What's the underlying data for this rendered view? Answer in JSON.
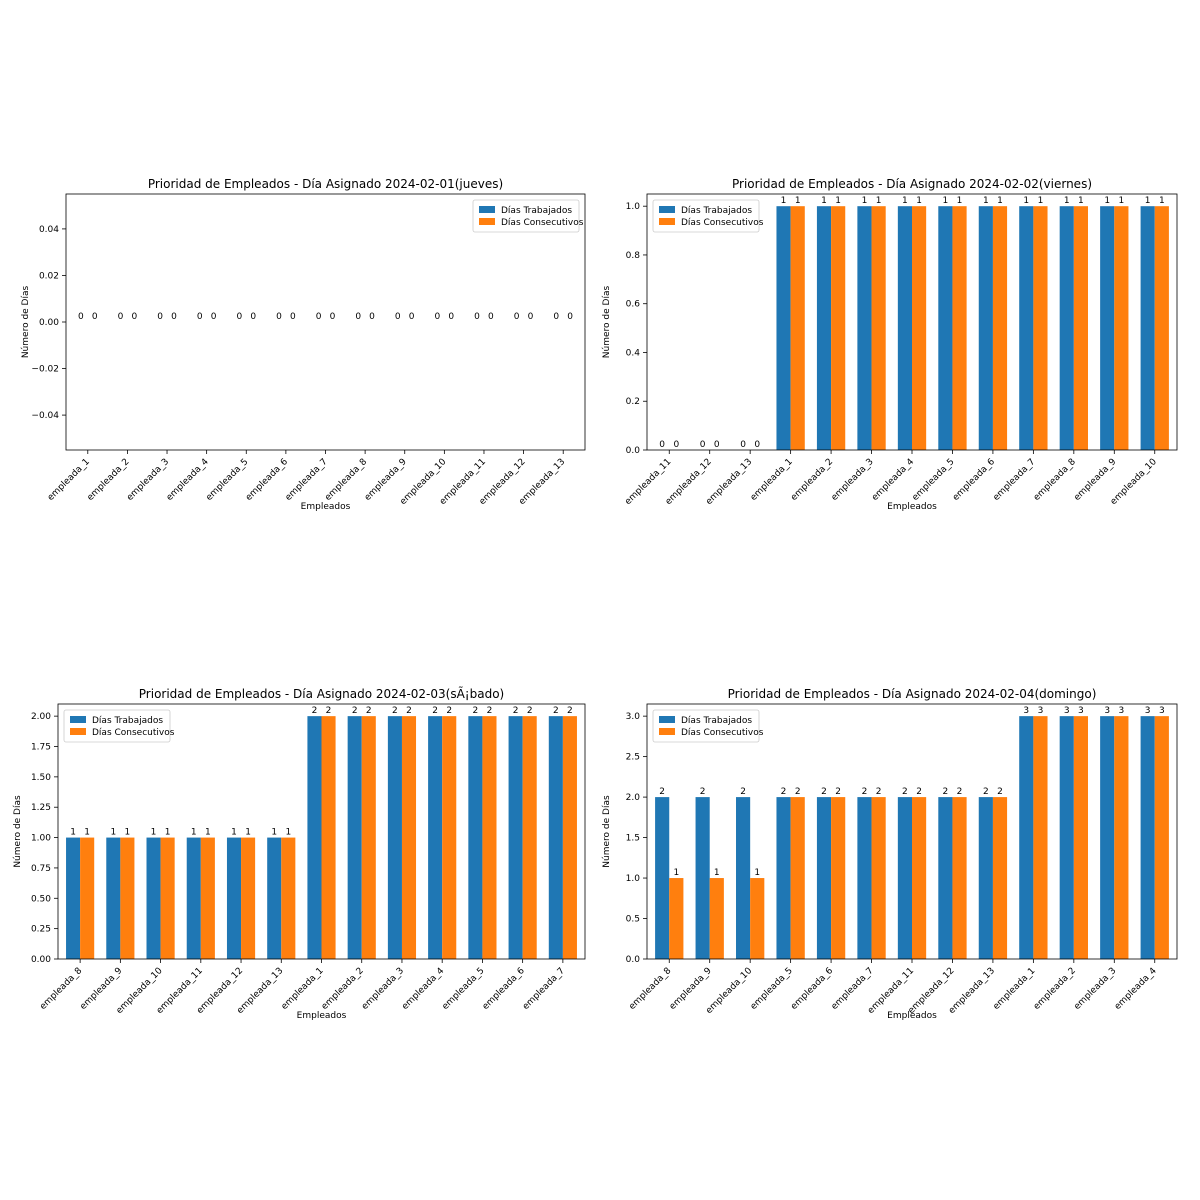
{
  "legend_labels": [
    "Días Trabajados",
    "Días Consecutivos"
  ],
  "colors": {
    "series_1": "#1f77b4",
    "series_2": "#ff7f0e",
    "axes": "#000000"
  },
  "chart_data": [
    {
      "type": "bar",
      "title": "Prioridad de Empleados - Día Asignado 2024-02-01(jueves)",
      "xlabel": "Empleados",
      "ylabel": "Número de Días",
      "ylim": [
        -0.055,
        0.055
      ],
      "yticks": [
        -0.04,
        -0.02,
        0.0,
        0.02,
        0.04
      ],
      "ytick_labels": [
        "−0.04",
        "−0.02",
        "0.00",
        "0.02",
        "0.04"
      ],
      "legend_position": "upper right",
      "grid": false,
      "categories": [
        "empleada_1",
        "empleada_2",
        "empleada_3",
        "empleada_4",
        "empleada_5",
        "empleada_6",
        "empleada_7",
        "empleada_8",
        "empleada_9",
        "empleada_10",
        "empleada_11",
        "empleada_12",
        "empleada_13"
      ],
      "series": [
        {
          "name": "Días Trabajados",
          "values": [
            0,
            0,
            0,
            0,
            0,
            0,
            0,
            0,
            0,
            0,
            0,
            0,
            0
          ]
        },
        {
          "name": "Días Consecutivos",
          "values": [
            0,
            0,
            0,
            0,
            0,
            0,
            0,
            0,
            0,
            0,
            0,
            0,
            0
          ]
        }
      ]
    },
    {
      "type": "bar",
      "title": "Prioridad de Empleados - Día Asignado 2024-02-02(viernes)",
      "xlabel": "Empleados",
      "ylabel": "Número de Días",
      "ylim": [
        0,
        1.05
      ],
      "yticks": [
        0.0,
        0.2,
        0.4,
        0.6,
        0.8,
        1.0
      ],
      "ytick_labels": [
        "0.0",
        "0.2",
        "0.4",
        "0.6",
        "0.8",
        "1.0"
      ],
      "legend_position": "upper left",
      "grid": false,
      "categories": [
        "empleada_11",
        "empleada_12",
        "empleada_13",
        "empleada_1",
        "empleada_2",
        "empleada_3",
        "empleada_4",
        "empleada_5",
        "empleada_6",
        "empleada_7",
        "empleada_8",
        "empleada_9",
        "empleada_10"
      ],
      "series": [
        {
          "name": "Días Trabajados",
          "values": [
            0,
            0,
            0,
            1,
            1,
            1,
            1,
            1,
            1,
            1,
            1,
            1,
            1
          ]
        },
        {
          "name": "Días Consecutivos",
          "values": [
            0,
            0,
            0,
            1,
            1,
            1,
            1,
            1,
            1,
            1,
            1,
            1,
            1
          ]
        }
      ]
    },
    {
      "type": "bar",
      "title": "Prioridad de Empleados - Día Asignado 2024-02-03(sÃ¡bado)",
      "xlabel": "Empleados",
      "ylabel": "Número de Días",
      "ylim": [
        0,
        2.1
      ],
      "yticks": [
        0.0,
        0.25,
        0.5,
        0.75,
        1.0,
        1.25,
        1.5,
        1.75,
        2.0
      ],
      "ytick_labels": [
        "0.00",
        "0.25",
        "0.50",
        "0.75",
        "1.00",
        "1.25",
        "1.50",
        "1.75",
        "2.00"
      ],
      "legend_position": "upper left",
      "grid": false,
      "categories": [
        "empleada_8",
        "empleada_9",
        "empleada_10",
        "empleada_11",
        "empleada_12",
        "empleada_13",
        "empleada_1",
        "empleada_2",
        "empleada_3",
        "empleada_4",
        "empleada_5",
        "empleada_6",
        "empleada_7"
      ],
      "series": [
        {
          "name": "Días Trabajados",
          "values": [
            1,
            1,
            1,
            1,
            1,
            1,
            2,
            2,
            2,
            2,
            2,
            2,
            2
          ]
        },
        {
          "name": "Días Consecutivos",
          "values": [
            1,
            1,
            1,
            1,
            1,
            1,
            2,
            2,
            2,
            2,
            2,
            2,
            2
          ]
        }
      ]
    },
    {
      "type": "bar",
      "title": "Prioridad de Empleados - Día Asignado 2024-02-04(domingo)",
      "xlabel": "Empleados",
      "ylabel": "Número de Días",
      "ylim": [
        0,
        3.15
      ],
      "yticks": [
        0.0,
        0.5,
        1.0,
        1.5,
        2.0,
        2.5,
        3.0
      ],
      "ytick_labels": [
        "0.0",
        "0.5",
        "1.0",
        "1.5",
        "2.0",
        "2.5",
        "3.0"
      ],
      "legend_position": "upper left",
      "grid": false,
      "categories": [
        "empleada_8",
        "empleada_9",
        "empleada_10",
        "empleada_5",
        "empleada_6",
        "empleada_7",
        "empleada_11",
        "empleada_12",
        "empleada_13",
        "empleada_1",
        "empleada_2",
        "empleada_3",
        "empleada_4"
      ],
      "series": [
        {
          "name": "Días Trabajados",
          "values": [
            2,
            2,
            2,
            2,
            2,
            2,
            2,
            2,
            2,
            3,
            3,
            3,
            3
          ]
        },
        {
          "name": "Días Consecutivos",
          "values": [
            1,
            1,
            1,
            2,
            2,
            2,
            2,
            2,
            2,
            3,
            3,
            3,
            3
          ]
        }
      ]
    }
  ]
}
